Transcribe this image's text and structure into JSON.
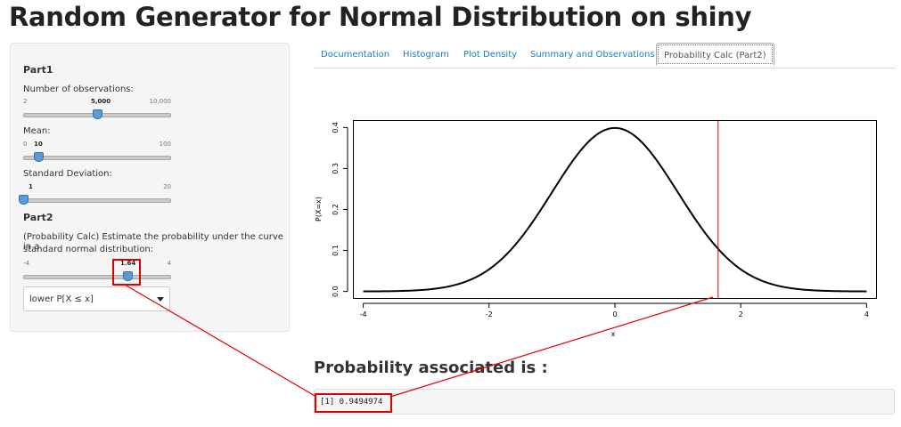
{
  "app": {
    "title": "Random Generator for Normal Distribution on shiny"
  },
  "sidebar": {
    "part1": "Part1",
    "observations": {
      "label": "Number of observations:",
      "min": "2",
      "max": "10,000",
      "value": "5,000",
      "fraction": 0.5
    },
    "mean": {
      "label": "Mean:",
      "min": "0",
      "max": "100",
      "value": "10",
      "fraction": 0.1
    },
    "sd": {
      "label": "Standard Deviation:",
      "min": "",
      "max": "20",
      "value": "1",
      "fraction": 0.0
    },
    "part2": "Part2",
    "prob_label_1": "(Probability Calc) Estimate the probability under the curve in a",
    "prob_label_2": "standard normal distribution:",
    "prob_slider": {
      "min": "-4",
      "max": "4",
      "value": "1.64",
      "fraction": 0.705
    },
    "tail_select": {
      "value": "lower P[X ≤ x]"
    }
  },
  "tabs": [
    {
      "label": "Documentation"
    },
    {
      "label": "Histogram"
    },
    {
      "label": "Plot Density"
    },
    {
      "label": "Summary and Observations"
    },
    {
      "label": "Probability Calc (Part2)",
      "active": true
    }
  ],
  "result": {
    "heading": "Probability associated is :",
    "output": "[1] 0.9494974"
  },
  "colors": {
    "highlight": "#e00000",
    "link": "#1a7fc1",
    "handle": "#5b9bd5"
  },
  "chart_data": {
    "type": "line",
    "function": "standard normal density",
    "xlim": [
      -4.15,
      4.15
    ],
    "ylim": [
      -0.016,
      0.416
    ],
    "xticks": [
      -4,
      -2,
      0,
      2,
      4
    ],
    "yticks": [
      0.0,
      0.1,
      0.2,
      0.3,
      0.4
    ],
    "xlabel": "x",
    "ylabel": "P(X=x)",
    "vline": 1.64,
    "curve_color": "#000000",
    "vline_color": "#e00000"
  }
}
